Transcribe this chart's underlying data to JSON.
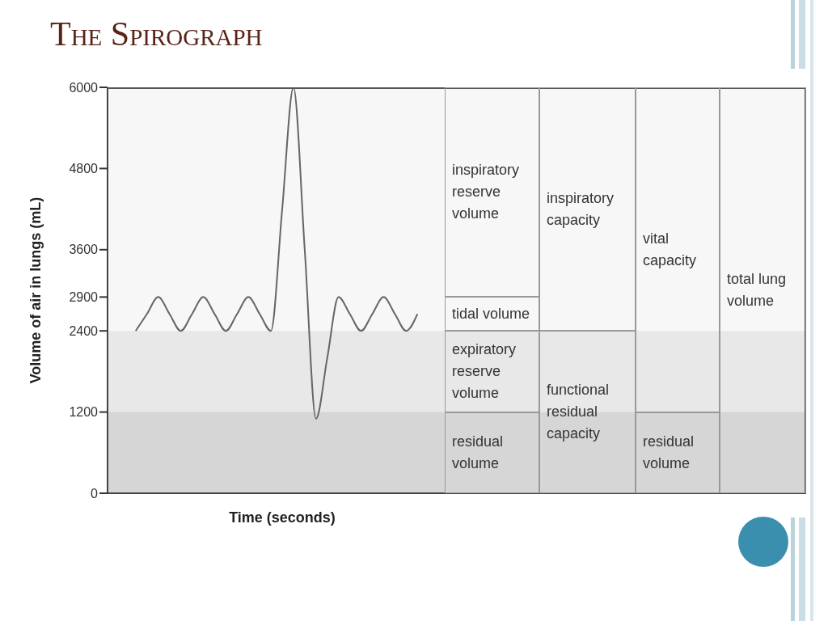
{
  "chart_data": {
    "type": "line",
    "title": "The Spirograph",
    "xlabel": "Time (seconds)",
    "ylabel": "Volume of air in lungs (mL)",
    "categories": [
      null,
      null,
      null,
      null,
      null,
      null,
      null,
      null,
      null,
      null,
      null,
      null,
      null,
      null,
      null,
      null,
      null,
      null,
      null,
      null,
      null,
      null,
      null,
      null,
      null,
      null,
      null,
      null,
      null,
      null,
      null,
      null,
      null,
      null,
      null,
      null,
      null,
      null,
      null,
      null,
      null,
      null,
      null,
      null,
      null,
      null,
      null,
      null,
      null,
      null,
      null,
      null,
      null,
      null,
      null,
      null,
      null,
      null,
      null,
      null,
      null,
      null
    ],
    "series": [
      {
        "color": "#666666",
        "values": [
          null,
          null,
          2400,
          2650,
          2900,
          2650,
          2400,
          2650,
          2900,
          2650,
          2400,
          2650,
          2900,
          2650,
          2400,
          4200,
          6000,
          3600,
          1100,
          2000,
          2900,
          2650,
          2400,
          2650,
          2900,
          2650,
          2400,
          2650,
          null,
          null,
          null,
          null,
          null,
          null,
          null,
          null,
          null,
          null,
          null,
          null,
          null,
          null,
          null,
          null,
          null,
          null,
          null,
          null,
          null,
          null,
          null,
          null,
          null,
          null,
          null,
          null,
          null,
          null,
          null,
          null,
          null,
          null
        ]
      }
    ],
    "ylim": [
      0,
      6000
    ],
    "yticks": [
      0,
      1200,
      2400,
      2900,
      3600,
      4800,
      6000
    ],
    "tick_labels": "y",
    "marker": "none",
    "line_style": "solid",
    "bands": [
      {
        "axis": "y",
        "from": 1200,
        "to": 2400,
        "color": "#e8e8e8"
      },
      {
        "axis": "y",
        "from": 0,
        "to": 1200,
        "color": "#d6d6d6"
      }
    ],
    "annotations": [
      "inspiratory reserve volume",
      "tidal volume",
      "expiratory reserve volume",
      "residual volume",
      "inspiratory capacity",
      "functional residual capacity",
      "vital capacity",
      "residual volume",
      "total lung volume"
    ]
  }
}
